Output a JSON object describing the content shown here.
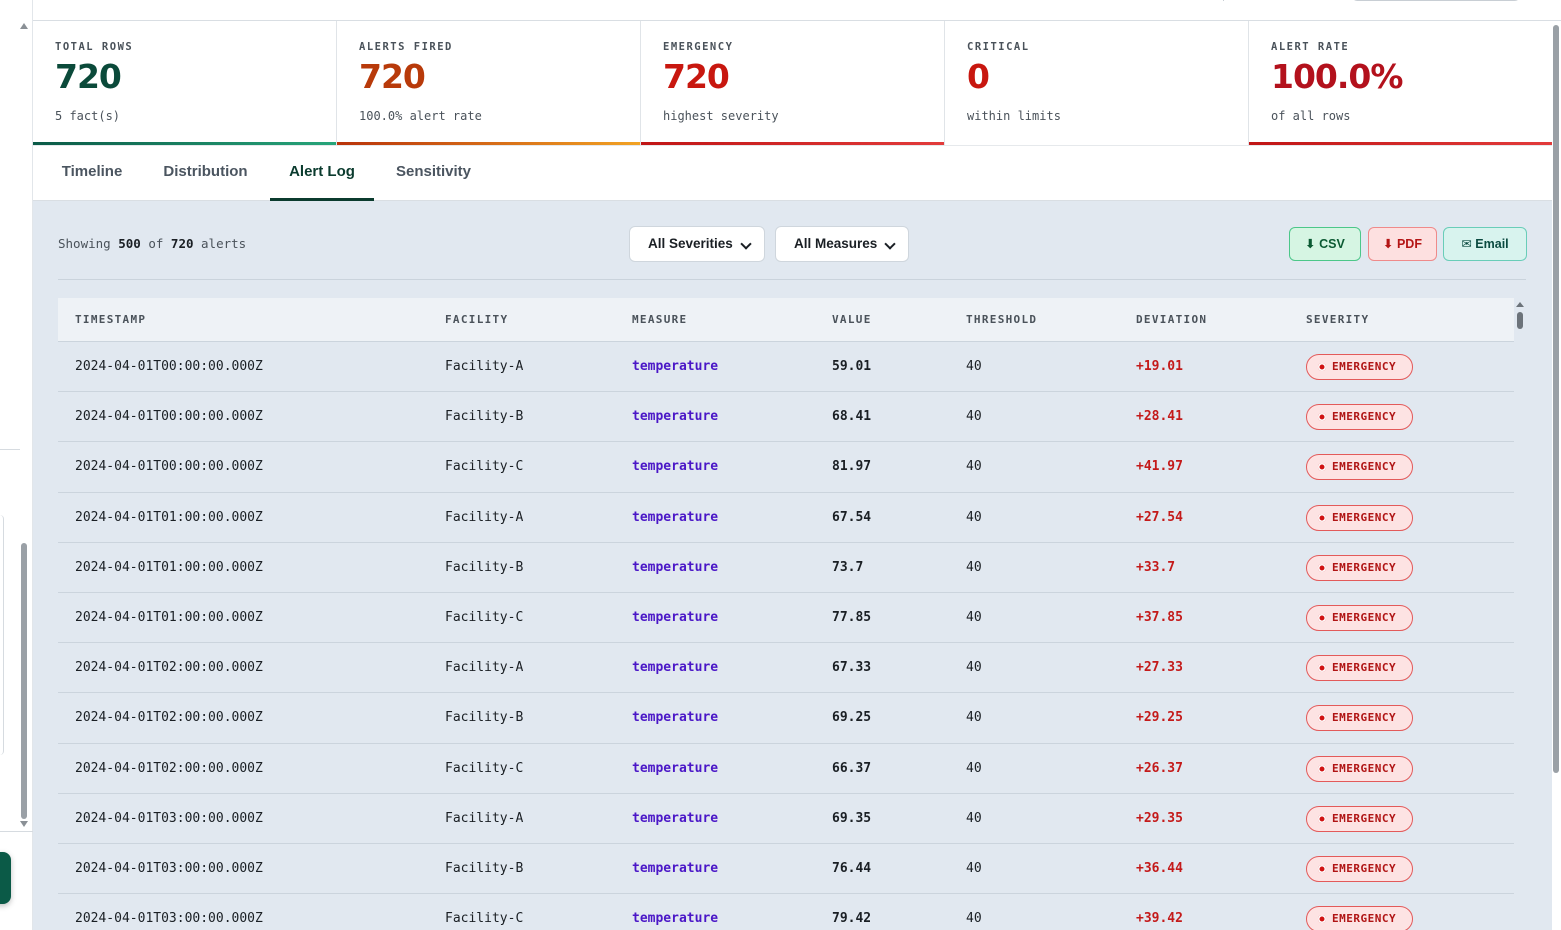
{
  "kpis": [
    {
      "label": "TOTAL ROWS",
      "value": "720",
      "sub": "5 fact(s)",
      "value_color": "#0b4a3a",
      "bar": "linear-gradient(90deg,#0b5a47,#27a57a)"
    },
    {
      "label": "ALERTS FIRED",
      "value": "720",
      "sub": "100.0% alert rate",
      "value_color": "#b83a0a",
      "bar": "linear-gradient(90deg,#b8320a,#f2a324)"
    },
    {
      "label": "EMERGENCY",
      "value": "720",
      "sub": "highest severity",
      "value_color": "#c8170f",
      "bar": "linear-gradient(90deg,#c01515,#e23b3b)"
    },
    {
      "label": "CRITICAL",
      "value": "0",
      "sub": "within limits",
      "value_color": "#c8170f",
      "bar": "transparent"
    },
    {
      "label": "ALERT RATE",
      "value": "100.0%",
      "sub": "of all rows",
      "value_color": "#b3111c",
      "bar": "linear-gradient(90deg,#c01515,#e23b3b)"
    }
  ],
  "tabs": [
    "Timeline",
    "Distribution",
    "Alert Log",
    "Sensitivity"
  ],
  "active_tab": "Alert Log",
  "summary": {
    "prefix": "Showing",
    "shown": "500",
    "of": "of",
    "total": "720",
    "suffix": "alerts"
  },
  "filters": {
    "severity": "All Severities",
    "measure": "All Measures"
  },
  "actions": {
    "csv": "⬇ CSV",
    "pdf": "⬇ PDF",
    "email": "✉ Email"
  },
  "columns": [
    "TIMESTAMP",
    "FACILITY",
    "MEASURE",
    "VALUE",
    "THRESHOLD",
    "DEVIATION",
    "SEVERITY"
  ],
  "rows": [
    {
      "ts": "2024-04-01T00:00:00.000Z",
      "facility": "Facility-A",
      "measure": "temperature",
      "value": "59.01",
      "threshold": "40",
      "deviation": "+19.01",
      "severity": "EMERGENCY"
    },
    {
      "ts": "2024-04-01T00:00:00.000Z",
      "facility": "Facility-B",
      "measure": "temperature",
      "value": "68.41",
      "threshold": "40",
      "deviation": "+28.41",
      "severity": "EMERGENCY"
    },
    {
      "ts": "2024-04-01T00:00:00.000Z",
      "facility": "Facility-C",
      "measure": "temperature",
      "value": "81.97",
      "threshold": "40",
      "deviation": "+41.97",
      "severity": "EMERGENCY"
    },
    {
      "ts": "2024-04-01T01:00:00.000Z",
      "facility": "Facility-A",
      "measure": "temperature",
      "value": "67.54",
      "threshold": "40",
      "deviation": "+27.54",
      "severity": "EMERGENCY"
    },
    {
      "ts": "2024-04-01T01:00:00.000Z",
      "facility": "Facility-B",
      "measure": "temperature",
      "value": "73.7",
      "threshold": "40",
      "deviation": "+33.7",
      "severity": "EMERGENCY"
    },
    {
      "ts": "2024-04-01T01:00:00.000Z",
      "facility": "Facility-C",
      "measure": "temperature",
      "value": "77.85",
      "threshold": "40",
      "deviation": "+37.85",
      "severity": "EMERGENCY"
    },
    {
      "ts": "2024-04-01T02:00:00.000Z",
      "facility": "Facility-A",
      "measure": "temperature",
      "value": "67.33",
      "threshold": "40",
      "deviation": "+27.33",
      "severity": "EMERGENCY"
    },
    {
      "ts": "2024-04-01T02:00:00.000Z",
      "facility": "Facility-B",
      "measure": "temperature",
      "value": "69.25",
      "threshold": "40",
      "deviation": "+29.25",
      "severity": "EMERGENCY"
    },
    {
      "ts": "2024-04-01T02:00:00.000Z",
      "facility": "Facility-C",
      "measure": "temperature",
      "value": "66.37",
      "threshold": "40",
      "deviation": "+26.37",
      "severity": "EMERGENCY"
    },
    {
      "ts": "2024-04-01T03:00:00.000Z",
      "facility": "Facility-A",
      "measure": "temperature",
      "value": "69.35",
      "threshold": "40",
      "deviation": "+29.35",
      "severity": "EMERGENCY"
    },
    {
      "ts": "2024-04-01T03:00:00.000Z",
      "facility": "Facility-B",
      "measure": "temperature",
      "value": "76.44",
      "threshold": "40",
      "deviation": "+36.44",
      "severity": "EMERGENCY"
    },
    {
      "ts": "2024-04-01T03:00:00.000Z",
      "facility": "Facility-C",
      "measure": "temperature",
      "value": "79.42",
      "threshold": "40",
      "deviation": "+39.42",
      "severity": "EMERGENCY"
    }
  ]
}
